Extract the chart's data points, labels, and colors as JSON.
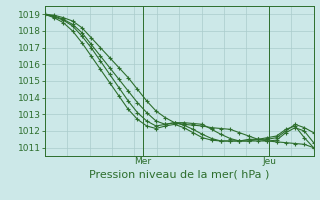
{
  "background_color": "#cce8e8",
  "grid_color": "#aacccc",
  "line_color": "#2d6e2d",
  "marker_color": "#2d6e2d",
  "xlabel": "Pression niveau de la mer( hPa )",
  "xlabel_fontsize": 8,
  "tick_label_fontsize": 6.5,
  "day_labels": [
    "Mer",
    "Jeu"
  ],
  "day_positions": [
    0.365,
    0.835
  ],
  "ylim": [
    1010.5,
    1019.5
  ],
  "yticks": [
    1011,
    1012,
    1013,
    1014,
    1015,
    1016,
    1017,
    1018,
    1019
  ],
  "n_xgrid": 12,
  "series": [
    [
      1019.0,
      1018.95,
      1018.8,
      1018.6,
      1018.2,
      1017.6,
      1017.0,
      1016.4,
      1015.8,
      1015.2,
      1014.5,
      1013.8,
      1013.2,
      1012.8,
      1012.5,
      1012.4,
      1012.35,
      1012.3,
      1012.2,
      1012.15,
      1012.1,
      1011.9,
      1011.7,
      1011.5,
      1011.4,
      1011.35,
      1011.3,
      1011.25,
      1011.2,
      1011.0
    ],
    [
      1019.0,
      1018.9,
      1018.7,
      1018.4,
      1017.9,
      1017.2,
      1016.5,
      1015.8,
      1015.1,
      1014.4,
      1013.7,
      1013.1,
      1012.6,
      1012.4,
      1012.5,
      1012.5,
      1012.45,
      1012.4,
      1012.1,
      1011.8,
      1011.55,
      1011.4,
      1011.4,
      1011.4,
      1011.4,
      1011.45,
      1011.9,
      1012.2,
      1012.0,
      1011.3
    ],
    [
      1019.0,
      1018.85,
      1018.65,
      1018.3,
      1017.7,
      1017.0,
      1016.2,
      1015.4,
      1014.6,
      1013.8,
      1013.1,
      1012.6,
      1012.3,
      1012.4,
      1012.5,
      1012.35,
      1012.1,
      1011.8,
      1011.55,
      1011.4,
      1011.4,
      1011.4,
      1011.4,
      1011.5,
      1011.5,
      1011.6,
      1012.0,
      1012.4,
      1012.2,
      1011.9
    ],
    [
      1019.0,
      1018.8,
      1018.5,
      1018.0,
      1017.3,
      1016.5,
      1015.7,
      1014.9,
      1014.1,
      1013.3,
      1012.7,
      1012.3,
      1012.15,
      1012.3,
      1012.4,
      1012.2,
      1011.9,
      1011.6,
      1011.45,
      1011.4,
      1011.4,
      1011.4,
      1011.5,
      1011.5,
      1011.6,
      1011.7,
      1012.1,
      1012.3,
      1011.6,
      1011.0
    ]
  ]
}
